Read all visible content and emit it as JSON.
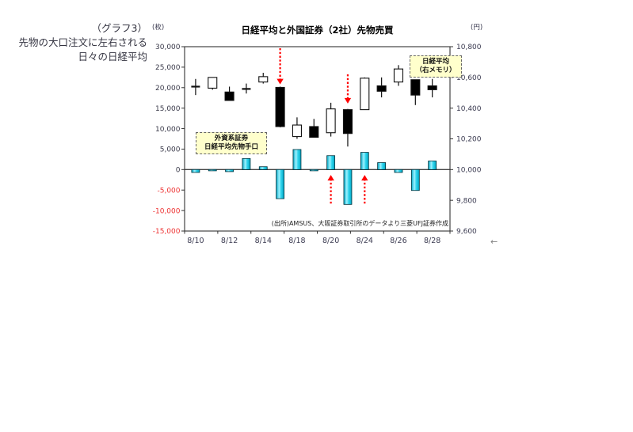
{
  "side_note": {
    "line1": "（グラフ3）",
    "line2": "先物の大口注文に左右される",
    "line3": "日々の日経平均"
  },
  "misc": {
    "cursor_glyph": "←"
  },
  "chart_data": {
    "type": "candlestick-and-bar",
    "title": "日経平均と外国証券（2社）先物売買",
    "source": "(出所)AMSUS、大阪証券取引所のデータより三菱UFJ証券作成",
    "legend_nikkei": {
      "line1": "日経平均",
      "line2": "（右メモリ）"
    },
    "legend_futures": {
      "line1": "外資系証券",
      "line2": "日経平均先物手口"
    },
    "left_axis": {
      "unit": "(枚)",
      "min": -15000,
      "max": 30000,
      "step": 5000,
      "label_color": "#3a3a4a",
      "negative_label_color": "#ee3333"
    },
    "right_axis": {
      "unit": "(円)",
      "min": 9600,
      "max": 10800,
      "step": 200,
      "label_color": "#3a3a50"
    },
    "x": {
      "dates": [
        "8/10",
        "8/11",
        "8/12",
        "8/13",
        "8/14",
        "8/17",
        "8/18",
        "8/19",
        "8/20",
        "8/21",
        "8/24",
        "8/25",
        "8/26",
        "8/27",
        "8/28"
      ],
      "tick_labels": [
        "8/10",
        "8/12",
        "8/14",
        "8/18",
        "8/20",
        "8/24",
        "8/26",
        "8/28"
      ],
      "label_color": "#3a3a50"
    },
    "series": [
      {
        "name": "外資系証券 日経平均先物手口",
        "type": "bar",
        "axis": "left",
        "fill": "#33d6ee",
        "fill_edge": "#00a6c4",
        "fill_center": "#9ff2ff",
        "stroke": "#00323c",
        "values": [
          -700,
          -300,
          -500,
          2700,
          700,
          -7100,
          4900,
          -300,
          3400,
          -8500,
          4200,
          1700,
          -700,
          -5100,
          2100
        ]
      },
      {
        "name": "日経平均",
        "type": "candlestick",
        "axis": "right",
        "up_fill": "#ffffff",
        "down_fill": "#000000",
        "stroke": "#111111",
        "candles": [
          {
            "date": "8/10",
            "open": 10540,
            "high": 10590,
            "low": 10485,
            "close": 10540
          },
          {
            "date": "8/11",
            "open": 10530,
            "high": 10600,
            "low": 10520,
            "close": 10600
          },
          {
            "date": "8/12",
            "open": 10505,
            "high": 10540,
            "low": 10450,
            "close": 10450
          },
          {
            "date": "8/13",
            "open": 10525,
            "high": 10560,
            "low": 10495,
            "close": 10525
          },
          {
            "date": "8/14",
            "open": 10570,
            "high": 10630,
            "low": 10560,
            "close": 10605
          },
          {
            "date": "8/17",
            "open": 10535,
            "high": 10540,
            "low": 10275,
            "close": 10280
          },
          {
            "date": "8/18",
            "open": 10215,
            "high": 10340,
            "low": 10200,
            "close": 10290
          },
          {
            "date": "8/19",
            "open": 10280,
            "high": 10330,
            "low": 10210,
            "close": 10210
          },
          {
            "date": "8/20",
            "open": 10240,
            "high": 10435,
            "low": 10215,
            "close": 10395
          },
          {
            "date": "8/21",
            "open": 10390,
            "high": 10395,
            "low": 10150,
            "close": 10235
          },
          {
            "date": "8/24",
            "open": 10390,
            "high": 10600,
            "low": 10390,
            "close": 10595
          },
          {
            "date": "8/25",
            "open": 10545,
            "high": 10600,
            "low": 10470,
            "close": 10510
          },
          {
            "date": "8/26",
            "open": 10570,
            "high": 10680,
            "low": 10545,
            "close": 10655
          },
          {
            "date": "8/27",
            "open": 10585,
            "high": 10585,
            "low": 10420,
            "close": 10485
          },
          {
            "date": "8/28",
            "open": 10545,
            "high": 10590,
            "low": 10470,
            "close": 10520
          }
        ]
      }
    ],
    "annotations": [
      {
        "type": "arrow-down",
        "date": "8/17",
        "axis": "right",
        "tail": 10790,
        "tip": 10555,
        "color": "#ff0000"
      },
      {
        "type": "arrow-down",
        "date": "8/21",
        "axis": "right",
        "tail": 10620,
        "tip": 10430,
        "color": "#ff0000"
      },
      {
        "type": "arrow-up",
        "date": "8/20",
        "axis": "left",
        "tail": -8300,
        "tip": -1300,
        "color": "#ff0000"
      },
      {
        "type": "arrow-up",
        "date": "8/24",
        "axis": "left",
        "tail": -8300,
        "tip": -1300,
        "color": "#ff0000"
      }
    ],
    "layout_hints": {
      "grid": false,
      "zero_line": true,
      "legend_position": "inside-plot",
      "frame": true
    }
  }
}
